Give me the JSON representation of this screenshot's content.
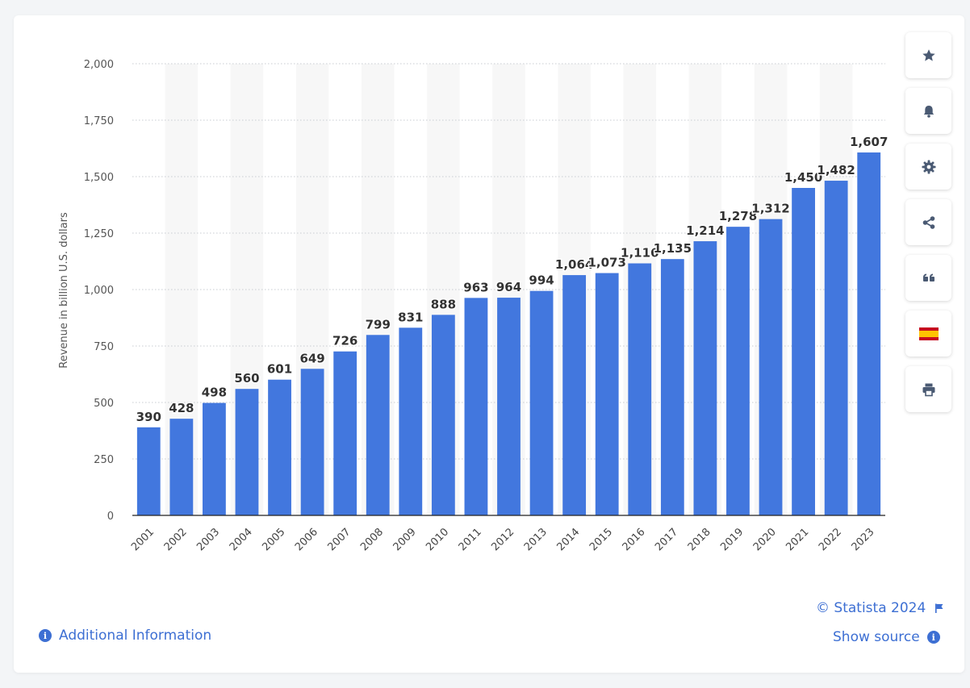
{
  "chart_data": {
    "type": "bar",
    "categories": [
      "2001",
      "2002",
      "2003",
      "2004",
      "2005",
      "2006",
      "2007",
      "2008",
      "2009",
      "2010",
      "2011",
      "2012",
      "2013",
      "2014",
      "2015",
      "2016",
      "2017",
      "2018",
      "2019",
      "2020",
      "2021",
      "2022",
      "2023"
    ],
    "values": [
      390,
      428,
      498,
      560,
      601,
      649,
      726,
      799,
      831,
      888,
      963,
      964,
      994,
      1064,
      1073,
      1116,
      1135,
      1214,
      1278,
      1312,
      1450,
      1482,
      1607
    ],
    "value_labels": [
      "390",
      "428",
      "498",
      "560",
      "601",
      "649",
      "726",
      "799",
      "831",
      "888",
      "963",
      "964",
      "994",
      "1,064",
      "1,073",
      "1,116",
      "1,135",
      "1,214",
      "1,278",
      "1,312",
      "1,450",
      "1,482",
      "1,607"
    ],
    "ylabel": "Revenue in billion U.S. dollars",
    "ylim": [
      0,
      2000
    ],
    "yticks": [
      0,
      250,
      500,
      750,
      1000,
      1250,
      1500,
      1750,
      2000
    ],
    "ytick_labels": [
      "0",
      "250",
      "500",
      "750",
      "1,000",
      "1,250",
      "1,500",
      "1,750",
      "2,000"
    ],
    "grid": true,
    "bar_color": "#4277de"
  },
  "colors": {
    "bar": "#4277de",
    "link": "#3d6fd3",
    "icon": "#4a5a73",
    "stripe": "#f7f7f7",
    "grid": "#c8ccd2"
  },
  "toolbar": {
    "buttons": [
      {
        "icon": "star-icon",
        "name": "favorite-button"
      },
      {
        "icon": "bell-icon",
        "name": "notification-button"
      },
      {
        "icon": "gear-icon",
        "name": "settings-button"
      },
      {
        "icon": "share-icon",
        "name": "share-button"
      },
      {
        "icon": "quote-icon",
        "name": "cite-button"
      },
      {
        "icon": "spain-flag-icon",
        "name": "language-button"
      },
      {
        "icon": "print-icon",
        "name": "print-button"
      }
    ]
  },
  "footer": {
    "copyright": "© Statista 2024",
    "show_source": "Show source",
    "additional_info": "Additional Information"
  }
}
